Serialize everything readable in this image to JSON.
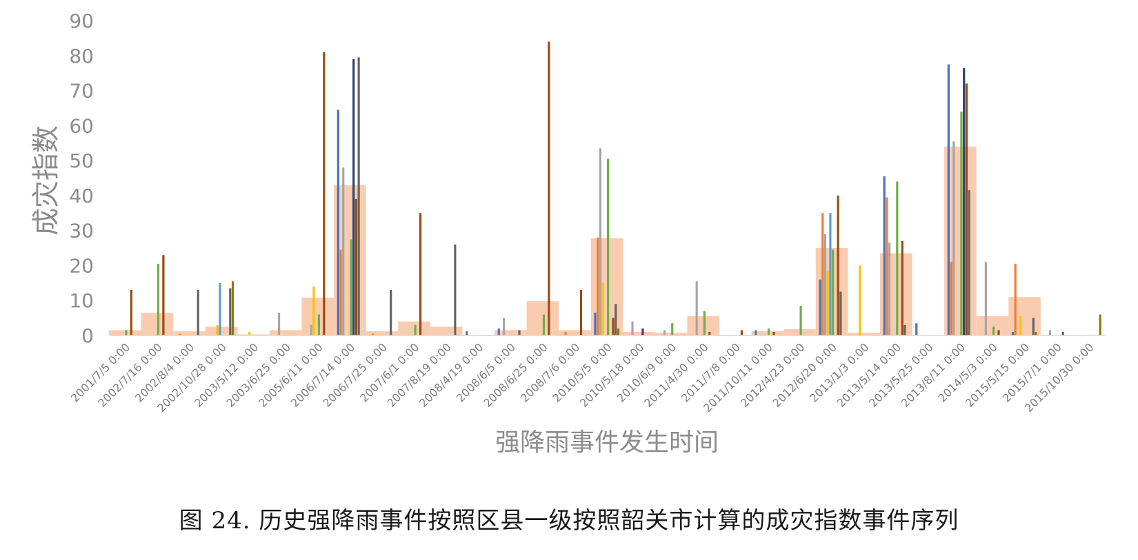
{
  "chart_data": {
    "type": "bar",
    "ylabel": "成灾指数",
    "xlabel": "强降雨事件发生时间",
    "ylim": [
      0,
      90
    ],
    "yticks": [
      0,
      10,
      20,
      30,
      40,
      50,
      60,
      70,
      80,
      90
    ],
    "grid": false,
    "legend": "none",
    "categories": [
      "2001/7/5 0:00",
      "2002/7/16 0:00",
      "2002/8/4 0:00",
      "2002/10/28 0:00",
      "2003/5/12 0:00",
      "2003/6/25 0:00",
      "2005/6/11 0:00",
      "2006/7/14 0:00",
      "2006/7/25 0:00",
      "2007/6/1 0:00",
      "2007/8/19 0:00",
      "2008/4/19 0:00",
      "2008/6/5 0:00",
      "2008/6/25 0:00",
      "2008/7/6 0:00",
      "2010/5/5 0:00",
      "2010/5/18 0:00",
      "2010/6/9 0:00",
      "2011/4/30 0:00",
      "2011/7/8 0:00",
      "2011/10/11 0:00",
      "2012/4/23 0:00",
      "2012/6/20 0:00",
      "2013/1/3 0:00",
      "2013/5/14 0:00",
      "2013/5/25 0:00",
      "2013/8/11 0:00",
      "2014/5/3 0:00",
      "2015/5/15 0:00",
      "2015/7/1 0:00",
      "2015/10/30 0:00"
    ],
    "overall": {
      "color": "#f8c3a2",
      "values": [
        1.5,
        6.5,
        1.2,
        2.5,
        0.3,
        1.5,
        10.8,
        43,
        1.2,
        4,
        2.5,
        0.2,
        1.5,
        9.8,
        1.5,
        27.8,
        1.0,
        0.8,
        5.5,
        0.2,
        1.2,
        1.8,
        25,
        0.8,
        23.5,
        0.1,
        54,
        5.5,
        11,
        0.1,
        0.1
      ]
    },
    "series": [
      {
        "color": "#4472c4",
        "values": [
          0,
          0,
          0,
          0,
          0,
          0,
          0,
          64.5,
          0,
          0,
          0,
          1.2,
          2,
          0,
          0,
          6.5,
          0,
          0,
          0,
          0,
          1.5,
          0,
          16,
          0,
          45.5,
          3.5,
          77.5,
          0,
          1,
          0,
          0
        ]
      },
      {
        "color": "#ed7d31",
        "values": [
          0,
          0,
          0.5,
          0,
          0,
          0,
          0,
          24.5,
          0.5,
          0,
          0,
          0,
          0,
          0,
          1,
          28,
          0,
          0,
          0,
          0,
          0,
          0,
          35,
          0,
          39.5,
          0,
          21,
          0,
          20.5,
          0,
          0
        ]
      },
      {
        "color": "#a5a5a5",
        "values": [
          0,
          0,
          0,
          0,
          0,
          6.5,
          3,
          48,
          0,
          0,
          0,
          0,
          5,
          0,
          0,
          53.5,
          4,
          1.5,
          15.5,
          0,
          0,
          0,
          29,
          0,
          26.5,
          0,
          55.5,
          21,
          0,
          1.5,
          0
        ]
      },
      {
        "color": "#ffc000",
        "values": [
          0,
          0,
          0,
          3,
          1,
          0,
          14,
          0,
          0,
          0,
          0,
          0,
          0,
          0,
          0,
          15,
          0,
          0,
          0,
          0,
          0,
          0,
          18.5,
          20,
          0,
          0,
          0,
          0,
          5.5,
          0,
          0
        ]
      },
      {
        "color": "#5b9bd5",
        "values": [
          0,
          0,
          0,
          15,
          0,
          0,
          0,
          0,
          0,
          0,
          0,
          0,
          0,
          0,
          0,
          0,
          0,
          0,
          0,
          0,
          0,
          0,
          35,
          0,
          0,
          0,
          0,
          0,
          0,
          0,
          0
        ]
      },
      {
        "color": "#70ad47",
        "values": [
          1.5,
          20.5,
          0,
          0,
          0,
          0,
          6,
          27.5,
          0,
          3,
          0,
          0,
          0,
          6,
          0,
          50.5,
          0,
          3.5,
          7,
          0,
          2,
          8.5,
          24.5,
          0,
          44,
          0,
          64,
          2.5,
          0,
          0,
          0
        ]
      },
      {
        "color": "#264478",
        "values": [
          0,
          0,
          0,
          0,
          0,
          0,
          0,
          79,
          0,
          0,
          0,
          0,
          0,
          0,
          0,
          0,
          2,
          0,
          0,
          0,
          0,
          0,
          0,
          0,
          0,
          0,
          76.5,
          0,
          0,
          0,
          0
        ]
      },
      {
        "color": "#9e480e",
        "values": [
          13,
          23,
          0,
          0,
          0,
          0,
          81,
          39,
          0,
          35,
          0,
          0,
          0,
          84,
          13,
          5,
          0,
          0,
          1,
          1.5,
          1,
          0,
          40,
          0,
          27,
          0,
          72,
          1.5,
          0,
          1,
          0
        ]
      },
      {
        "color": "#636363",
        "values": [
          0,
          0,
          13,
          13.5,
          0,
          0,
          0,
          79.5,
          13,
          0,
          26,
          0,
          1.5,
          0,
          0,
          9,
          0,
          0,
          0,
          0,
          0,
          0,
          12.5,
          0,
          3,
          0,
          41.5,
          0,
          5,
          0,
          0
        ]
      },
      {
        "color": "#997300",
        "values": [
          0,
          0,
          0,
          15.5,
          0,
          0,
          0,
          0,
          0,
          0,
          0,
          0,
          0,
          0,
          0,
          2,
          0,
          0,
          0,
          0,
          0,
          0,
          0,
          0,
          0,
          0,
          0,
          0,
          1,
          0,
          6
        ]
      }
    ]
  },
  "caption": "图 24. 历史强降雨事件按照区县一级按照韶关市计算的成灾指数事件序列"
}
